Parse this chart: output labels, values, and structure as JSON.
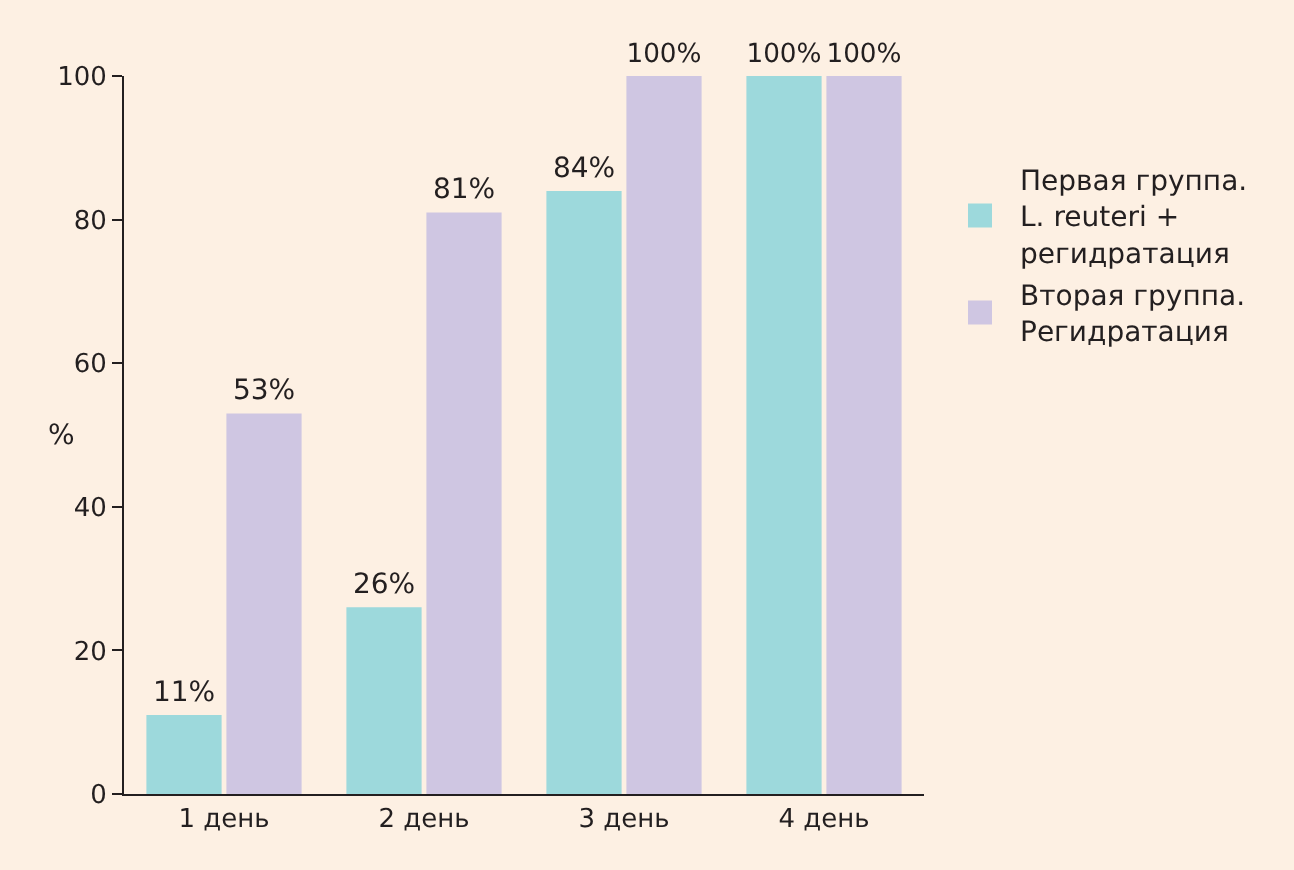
{
  "chart_data": {
    "type": "bar",
    "ylabel": "%",
    "categories": [
      "1 день",
      "2 день",
      "3 день",
      "4 день"
    ],
    "series": [
      {
        "name": "Первая группа. L. reuteri + регидратация",
        "color": "#9dd9dc",
        "values": [
          11,
          26,
          84,
          100
        ],
        "value_labels": [
          "11%",
          "26%",
          "84%",
          "100%"
        ]
      },
      {
        "name": "Вторая группа. Регидратация",
        "color": "#cfc6e2",
        "values": [
          53,
          81,
          100,
          100
        ],
        "value_labels": [
          "53%",
          "81%",
          "100%",
          "100%"
        ]
      }
    ],
    "ylim": [
      0,
      100
    ],
    "yticks": [
      0,
      20,
      40,
      60,
      80,
      100
    ],
    "grid": false,
    "legend": "right"
  }
}
